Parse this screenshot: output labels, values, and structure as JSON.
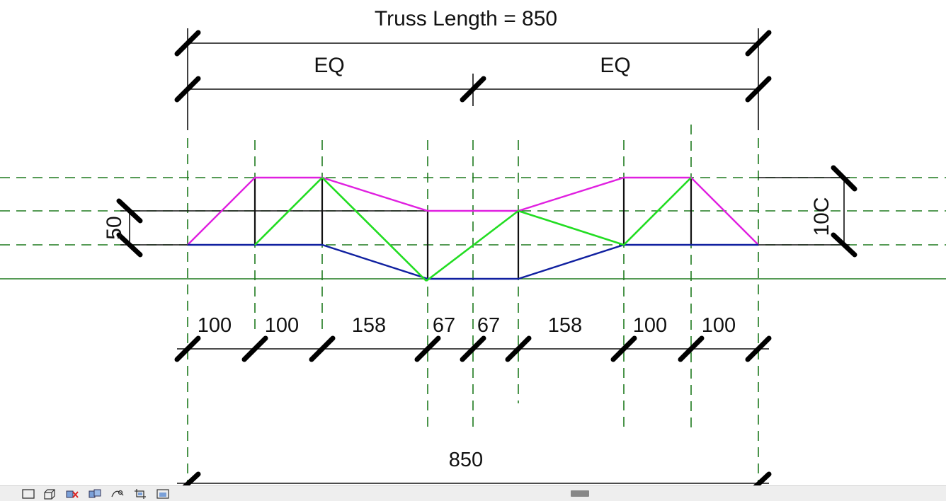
{
  "drawing": {
    "truss_length_label": "Truss Length = 850",
    "eq_label_left": "EQ",
    "eq_label_right": "EQ",
    "height_dim_left": "50",
    "height_dim_right": "10C",
    "panel_dims": [
      "100",
      "100",
      "158",
      "67",
      "67",
      "158",
      "100",
      "100"
    ],
    "overall_dim": "850",
    "colors": {
      "grid": "#1e7a1e",
      "top_chord": "#e020e0",
      "bottom_chord": "#1020a0",
      "web": "#22dd22",
      "vertical": "#111111"
    }
  },
  "view_control_bar": {
    "buttons": [
      {
        "name": "scale-icon",
        "label": ""
      },
      {
        "name": "detail-level-icon",
        "label": ""
      },
      {
        "name": "visual-style-icon",
        "label": ""
      },
      {
        "name": "sun-path-icon",
        "label": ""
      },
      {
        "name": "shadows-icon",
        "label": ""
      },
      {
        "name": "crop-view-icon",
        "label": ""
      },
      {
        "name": "show-crop-region-icon",
        "label": ""
      }
    ]
  }
}
